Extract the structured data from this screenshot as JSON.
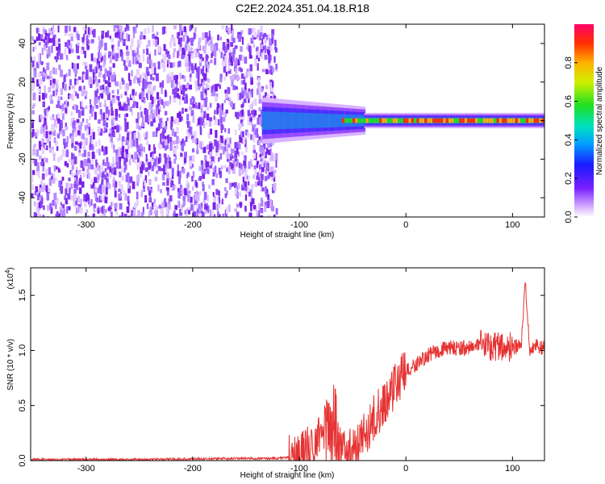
{
  "title": "C2E2.2024.351.04.18.R18",
  "chart_data": [
    {
      "type": "heatmap",
      "title": "C2E2.2024.351.04.18.R18",
      "xlabel": "Height of straight line (km)",
      "ylabel": "Frequency (Hz)",
      "xlim": [
        -352,
        130
      ],
      "ylim": [
        -50,
        50
      ],
      "xticks": [
        "-300",
        "-200",
        "-100",
        "0",
        "100"
      ],
      "yticks": [
        "40",
        "20",
        "0",
        "-20",
        "-40"
      ],
      "colorbar": {
        "label": "Normalized spectral amplitude",
        "ticks": [
          "0.0",
          "0.2",
          "0.4",
          "0.6",
          "0.8"
        ],
        "range": [
          0,
          1
        ]
      },
      "description_features": {
        "noise_region_x": [
          -352,
          -122
        ],
        "signal_center_hz": 0,
        "signal_start_km": -135,
        "strong_line_start_km": -60
      }
    },
    {
      "type": "line",
      "xlabel": "Height of straight line (km)",
      "ylabel": "SNR (10 * v/v)",
      "exponent_label": "(x10",
      "exponent_power": "4",
      "exponent_close": ")",
      "xlim": [
        -352,
        130
      ],
      "ylim": [
        0,
        1.75
      ],
      "xticks": [
        "-300",
        "-200",
        "-100",
        "0",
        "100"
      ],
      "yticks": [
        "0.0",
        "0.5",
        "1.0",
        "1.5"
      ],
      "color": "#e63232",
      "series": [
        {
          "values_x": [
            -352,
            -300,
            -250,
            -200,
            -150,
            -120,
            -105,
            -95,
            -85,
            -75,
            -68,
            -62,
            -55,
            -48,
            -42,
            -35,
            -28,
            -22,
            -15,
            -10,
            -5,
            0,
            10,
            20,
            30,
            40,
            60,
            80,
            100,
            108,
            112,
            116,
            120,
            130
          ],
          "values_y": [
            0.01,
            0.01,
            0.01,
            0.015,
            0.02,
            0.02,
            0.04,
            0.08,
            0.15,
            0.35,
            0.3,
            0.12,
            0.1,
            0.07,
            0.2,
            0.3,
            0.42,
            0.5,
            0.6,
            0.7,
            0.75,
            0.8,
            0.88,
            0.95,
            1.0,
            1.02,
            1.03,
            1.05,
            1.02,
            1.04,
            1.6,
            1.0,
            1.05,
            1.02
          ]
        }
      ]
    }
  ]
}
